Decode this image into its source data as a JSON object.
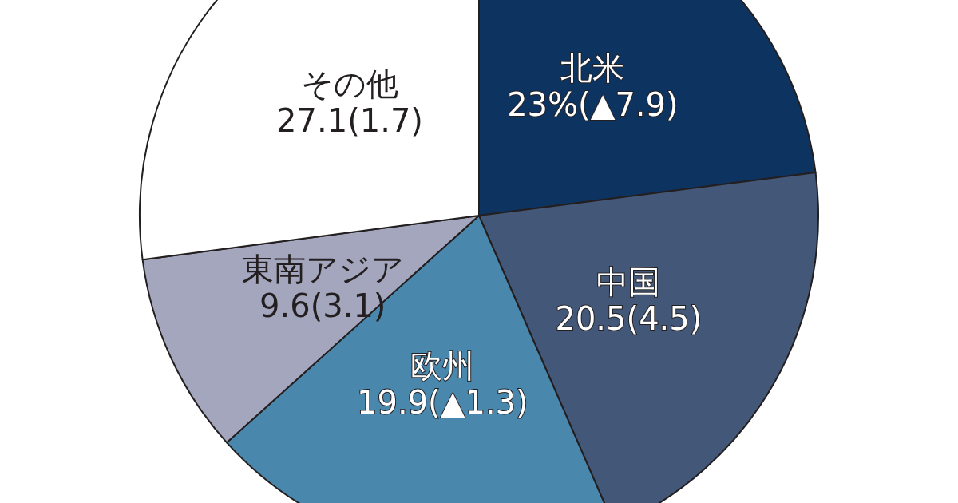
{
  "chart_data": {
    "type": "pie",
    "categories": [
      "北米",
      "中国",
      "欧州",
      "東南アジア",
      "その他"
    ],
    "values": [
      23,
      20.5,
      19.9,
      9.6,
      27.1
    ],
    "value_labels": [
      "23%(▲7.9)",
      "20.5(4.5)",
      "19.9(▲1.3)",
      "9.6(3.1)",
      "27.1(1.7)"
    ],
    "colors": [
      "#0d3461",
      "#435878",
      "#4a87ad",
      "#a3a6bd",
      "#ffffff"
    ],
    "legend": false
  }
}
